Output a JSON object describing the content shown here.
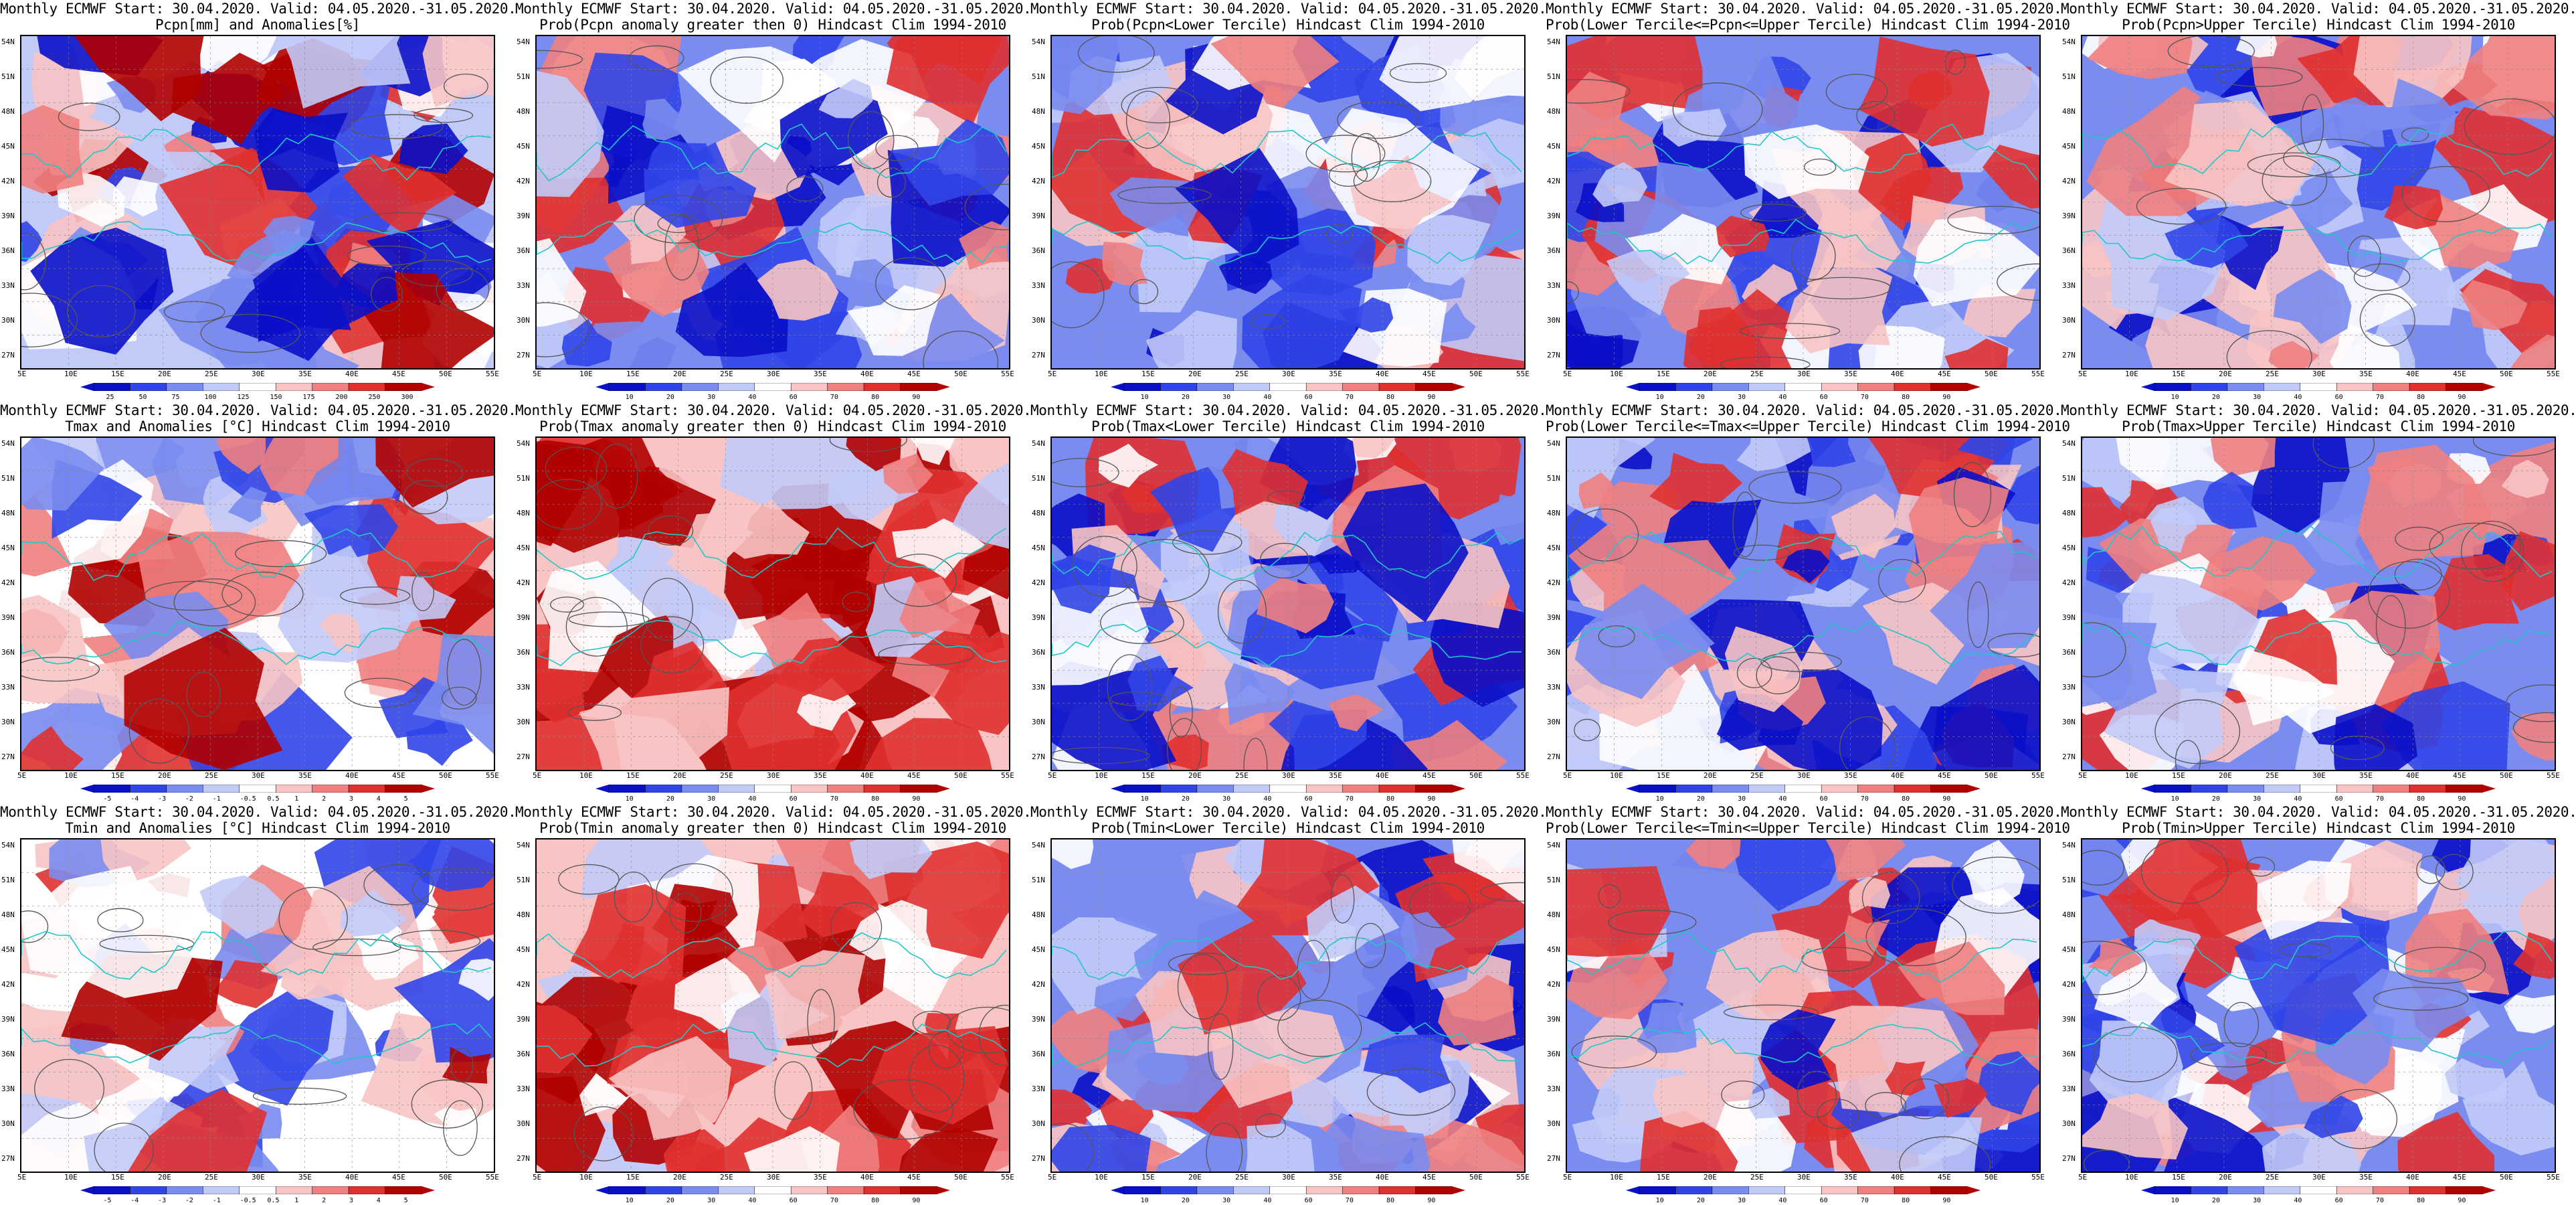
{
  "common": {
    "line1": "Monthly ECMWF Start: 30.04.2020. Valid: 04.05.2020.-31.05.2020.",
    "lat_labels": [
      "54N",
      "51N",
      "48N",
      "45N",
      "42N",
      "39N",
      "36N",
      "33N",
      "30N",
      "27N"
    ],
    "lon_labels": [
      "5E",
      "10E",
      "15E",
      "20E",
      "25E",
      "30E",
      "35E",
      "40E",
      "45E",
      "50E",
      "55E"
    ]
  },
  "colors": {
    "deep_blue": "#0a10c8",
    "blue": "#3045e8",
    "mid_blue": "#7a8cf0",
    "light_blue": "#c2cbf8",
    "white": "#ffffff",
    "light_red": "#f8c4c4",
    "mid_red": "#f08080",
    "red": "#e03030",
    "dark_red": "#b00000",
    "coast_cyan": "#20c8c8",
    "contour_gray": "#555555"
  },
  "panels": [
    {
      "title": "Pcpn[mm] and Anomalies[%]",
      "scale": "anom_pcpn",
      "colorbar": [
        "25",
        "50",
        "75",
        "100",
        "125",
        "150",
        "175",
        "200",
        "250",
        "300"
      ]
    },
    {
      "title": "Prob(Pcpn anomaly greater then 0) Hindcast Clim 1994-2010",
      "scale": "prob_blue",
      "colorbar": [
        "10",
        "20",
        "30",
        "40",
        "60",
        "70",
        "80",
        "90"
      ]
    },
    {
      "title": "Prob(Pcpn<Lower Tercile) Hindcast Clim 1994-2010",
      "scale": "prob_mixed",
      "colorbar": [
        "10",
        "20",
        "30",
        "40",
        "60",
        "70",
        "80",
        "90"
      ]
    },
    {
      "title": "Prob(Lower Tercile<=Pcpn<=Upper Tercile) Hindcast Clim 1994-2010",
      "scale": "prob_mixed",
      "colorbar": [
        "10",
        "20",
        "30",
        "40",
        "60",
        "70",
        "80",
        "90"
      ]
    },
    {
      "title": "Prob(Pcpn>Upper Tercile) Hindcast Clim 1994-2010",
      "scale": "prob_blue",
      "colorbar": [
        "10",
        "20",
        "30",
        "40",
        "60",
        "70",
        "80",
        "90"
      ]
    },
    {
      "title": "Tmax and Anomalies [°C] Hindcast Clim 1994-2010",
      "scale": "anom_temp",
      "colorbar": [
        "-5",
        "-4",
        "-3",
        "-2",
        "-1",
        "-0.5",
        "0.5",
        "1",
        "2",
        "3",
        "4",
        "5"
      ]
    },
    {
      "title": "Prob(Tmax anomaly greater then 0) Hindcast Clim 1994-2010",
      "scale": "prob_red",
      "colorbar": [
        "10",
        "20",
        "30",
        "40",
        "60",
        "70",
        "80",
        "90"
      ]
    },
    {
      "title": "Prob(Tmax<Lower Tercile) Hindcast Clim 1994-2010",
      "scale": "prob_blue",
      "colorbar": [
        "10",
        "20",
        "30",
        "40",
        "60",
        "70",
        "80",
        "90"
      ]
    },
    {
      "title": "Prob(Lower Tercile<=Tmax<=Upper Tercile) Hindcast Clim 1994-2010",
      "scale": "prob_blue",
      "colorbar": [
        "10",
        "20",
        "30",
        "40",
        "60",
        "70",
        "80",
        "90"
      ]
    },
    {
      "title": "Prob(Tmax>Upper Tercile) Hindcast Clim 1994-2010",
      "scale": "prob_mixed",
      "colorbar": [
        "10",
        "20",
        "30",
        "40",
        "60",
        "70",
        "80",
        "90"
      ]
    },
    {
      "title": "Tmin and Anomalies [°C] Hindcast Clim 1994-2010",
      "scale": "anom_temp",
      "colorbar": [
        "-5",
        "-4",
        "-3",
        "-2",
        "-1",
        "-0.5",
        "0.5",
        "1",
        "2",
        "3",
        "4",
        "5"
      ]
    },
    {
      "title": "Prob(Tmin anomaly greater then 0) Hindcast Clim 1994-2010",
      "scale": "prob_red",
      "colorbar": [
        "10",
        "20",
        "30",
        "40",
        "60",
        "70",
        "80",
        "90"
      ]
    },
    {
      "title": "Prob(Tmin<Lower Tercile) Hindcast Clim 1994-2010",
      "scale": "prob_blue",
      "colorbar": [
        "10",
        "20",
        "30",
        "40",
        "60",
        "70",
        "80",
        "90"
      ]
    },
    {
      "title": "Prob(Lower Tercile<=Tmin<=Upper Tercile) Hindcast Clim 1994-2010",
      "scale": "prob_blue",
      "colorbar": [
        "10",
        "20",
        "30",
        "40",
        "60",
        "70",
        "80",
        "90"
      ]
    },
    {
      "title": "Prob(Tmin>Upper Tercile) Hindcast Clim 1994-2010",
      "scale": "prob_mixed",
      "colorbar": [
        "10",
        "20",
        "30",
        "40",
        "60",
        "70",
        "80",
        "90"
      ]
    }
  ]
}
